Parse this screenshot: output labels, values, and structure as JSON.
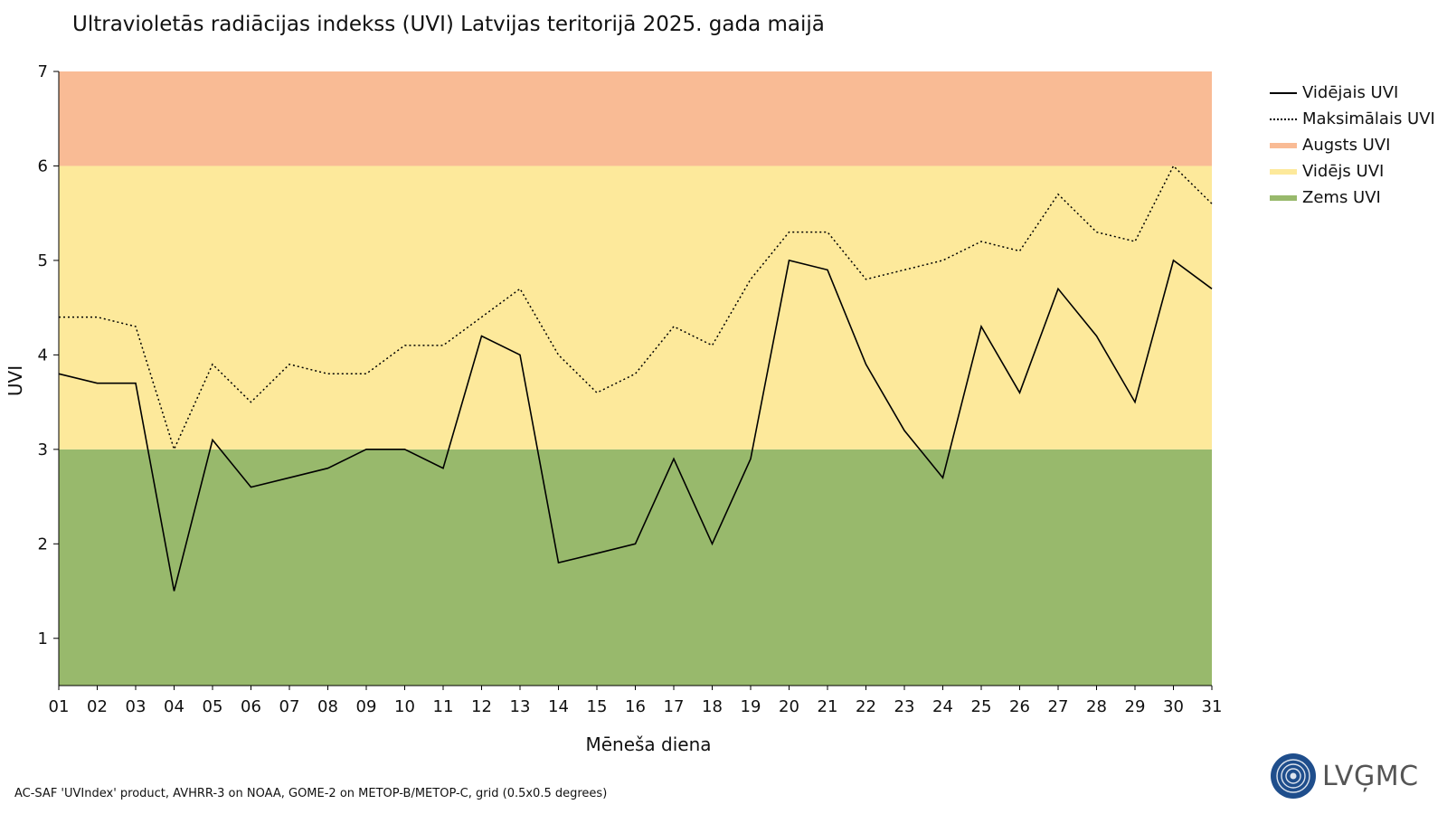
{
  "title": "Ultravioletās radiācijas indekss (UVI) Latvijas teritorijā 2025. gada maijā",
  "footer": "AC-SAF 'UVIndex' product, AVHRR-3 on NOAA, GOME-2 on METOP-B/METOP-C, grid (0.5x0.5 degrees)",
  "logo_text": "LVĢMC",
  "legend": [
    {
      "label": "Vidējais UVI",
      "style": "solid",
      "color": "#000000"
    },
    {
      "label": "Maksimālais UVI",
      "style": "dotted",
      "color": "#000000"
    },
    {
      "label": "Augsts UVI",
      "style": "band",
      "color": "#f9bb95"
    },
    {
      "label": "Vidējs UVI",
      "style": "band",
      "color": "#fde99b"
    },
    {
      "label": "Zems UVI",
      "style": "band",
      "color": "#98b96c"
    }
  ],
  "chart_data": {
    "type": "line",
    "title": "Ultravioletās radiācijas indekss (UVI) Latvijas teritorijā 2025. gada maijā",
    "xlabel": "Mēneša diena",
    "ylabel": "UVI",
    "ylim": [
      0.5,
      7
    ],
    "yticks": [
      1,
      2,
      3,
      4,
      5,
      6,
      7
    ],
    "categories": [
      "01",
      "02",
      "03",
      "04",
      "05",
      "06",
      "07",
      "08",
      "09",
      "10",
      "11",
      "12",
      "13",
      "14",
      "15",
      "16",
      "17",
      "18",
      "19",
      "20",
      "21",
      "22",
      "23",
      "24",
      "25",
      "26",
      "27",
      "28",
      "29",
      "30",
      "31"
    ],
    "bands": [
      {
        "name": "Zems UVI",
        "from": 0.5,
        "to": 3,
        "color": "#98b96c"
      },
      {
        "name": "Vidējs UVI",
        "from": 3,
        "to": 6,
        "color": "#fde99b"
      },
      {
        "name": "Augsts UVI",
        "from": 6,
        "to": 7,
        "color": "#f9bb95"
      }
    ],
    "series": [
      {
        "name": "Vidējais UVI",
        "style": "solid",
        "values": [
          3.8,
          3.7,
          3.7,
          1.5,
          3.1,
          2.6,
          2.7,
          2.8,
          3.0,
          3.0,
          2.8,
          4.2,
          4.0,
          1.8,
          1.9,
          2.0,
          2.9,
          2.0,
          2.9,
          5.0,
          4.9,
          3.9,
          3.2,
          2.7,
          4.3,
          3.6,
          4.7,
          4.2,
          3.5,
          5.0,
          4.7
        ]
      },
      {
        "name": "Maksimālais UVI",
        "style": "dotted",
        "values": [
          4.4,
          4.4,
          4.3,
          3.0,
          3.9,
          3.5,
          3.9,
          3.8,
          3.8,
          4.1,
          4.1,
          4.4,
          4.7,
          4.0,
          3.6,
          3.8,
          4.3,
          4.1,
          4.8,
          5.3,
          5.3,
          4.8,
          4.9,
          5.0,
          5.2,
          5.1,
          5.7,
          5.3,
          5.2,
          6.0,
          5.6
        ]
      }
    ],
    "grid": false,
    "legend_position": "right"
  }
}
